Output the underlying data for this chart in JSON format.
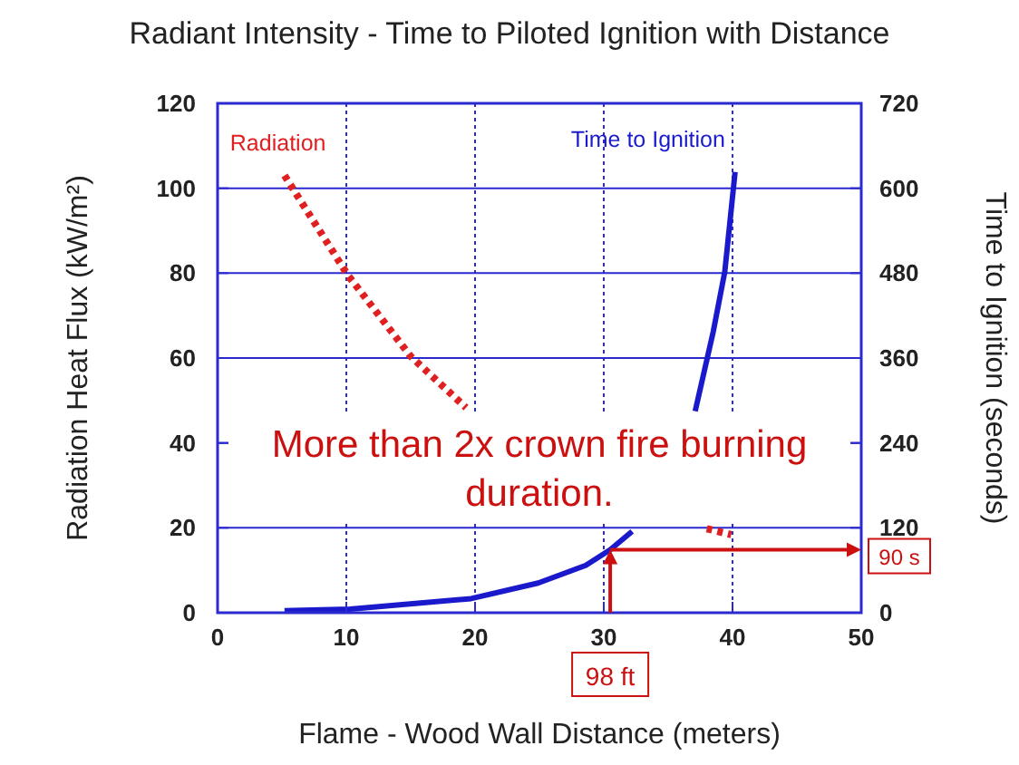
{
  "chart_data": {
    "type": "line",
    "title": "Radiant Intensity - Time to Piloted Ignition with Distance",
    "xlabel": "Flame - Wood Wall Distance (meters)",
    "ylabel": "Radiation Heat Flux (kW/m²)",
    "y2label": "Time to Ignition (seconds)",
    "series": [
      {
        "name": "Radiation",
        "color": "#e02020",
        "line_style": "dotted",
        "x": [
          5.2,
          10.1,
          15.0,
          19.3,
          null,
          38,
          39.9
        ],
        "values": [
          103,
          79.6,
          60.4,
          48.3,
          null,
          19.8,
          18.4
        ]
      },
      {
        "name": "Time to Ignition",
        "color": "#1a1acc",
        "line_style": "solid",
        "axis": "y2",
        "x": [
          5.2,
          10.3,
          19.7,
          24.9,
          28.6,
          30.5,
          32.2,
          null,
          37.1,
          38.5,
          39.4,
          40.2
        ],
        "values": [
          3,
          5,
          20,
          42,
          67,
          89,
          115,
          null,
          285,
          397,
          482,
          623
        ]
      }
    ],
    "xlim": [
      0,
      50
    ],
    "xticks": [
      0,
      10,
      20,
      30,
      40,
      50
    ],
    "ylim": [
      0,
      120
    ],
    "yticks": [
      0,
      20,
      40,
      60,
      80,
      100,
      120
    ],
    "y2lim": [
      0,
      720
    ],
    "y2ticks": [
      0,
      120,
      240,
      360,
      480,
      600,
      720
    ],
    "grid": true,
    "annotations": [
      "More than 2x crown fire burning duration.",
      "98 ft",
      "90 s"
    ]
  }
}
